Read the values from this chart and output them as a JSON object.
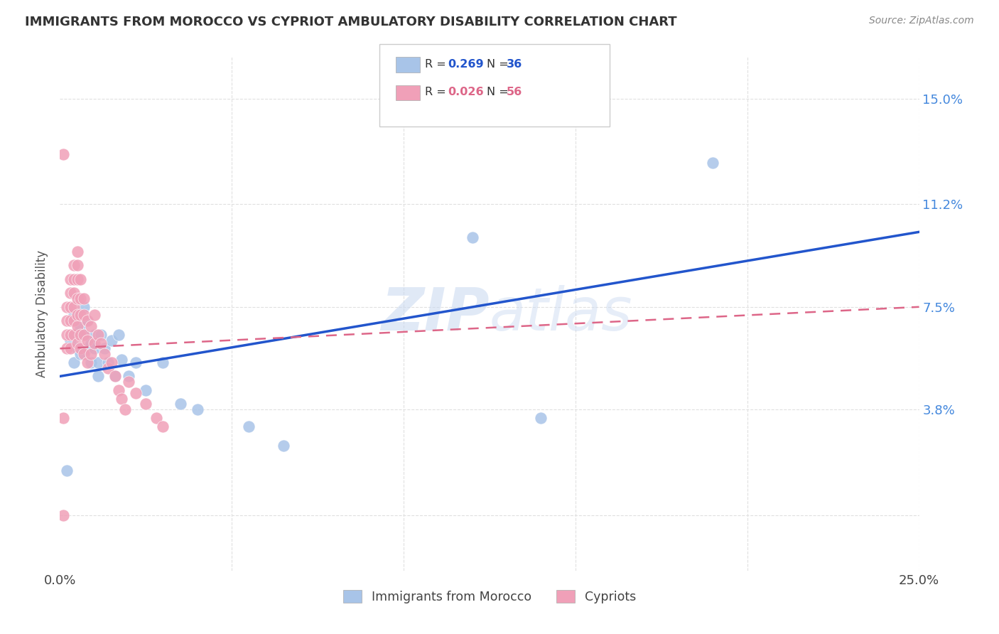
{
  "title": "IMMIGRANTS FROM MOROCCO VS CYPRIOT AMBULATORY DISABILITY CORRELATION CHART",
  "source": "Source: ZipAtlas.com",
  "ylabel": "Ambulatory Disability",
  "watermark": "ZIPAtlas",
  "x_min": 0.0,
  "x_max": 0.25,
  "y_min": -0.02,
  "y_max": 0.165,
  "color_blue": "#a8c4e8",
  "color_pink": "#f0a0b8",
  "line_color_blue": "#2255cc",
  "line_color_pink": "#dd6688",
  "legend_label1": "Immigrants from Morocco",
  "legend_label2": "Cypriots",
  "background_color": "#ffffff",
  "grid_color": "#e0e0e0",
  "blue_line_x0": 0.0,
  "blue_line_y0": 0.05,
  "blue_line_x1": 0.25,
  "blue_line_y1": 0.102,
  "pink_line_x0": 0.0,
  "pink_line_y0": 0.06,
  "pink_line_x1": 0.25,
  "pink_line_y1": 0.075,
  "morocco_x": [
    0.002,
    0.003,
    0.004,
    0.004,
    0.005,
    0.005,
    0.006,
    0.006,
    0.007,
    0.007,
    0.008,
    0.008,
    0.009,
    0.009,
    0.01,
    0.01,
    0.011,
    0.011,
    0.012,
    0.013,
    0.014,
    0.015,
    0.016,
    0.017,
    0.018,
    0.02,
    0.022,
    0.025,
    0.03,
    0.035,
    0.04,
    0.055,
    0.14,
    0.19,
    0.12,
    0.065
  ],
  "morocco_y": [
    0.016,
    0.063,
    0.072,
    0.055,
    0.065,
    0.06,
    0.068,
    0.058,
    0.075,
    0.065,
    0.07,
    0.06,
    0.062,
    0.055,
    0.065,
    0.06,
    0.055,
    0.05,
    0.065,
    0.06,
    0.055,
    0.063,
    0.05,
    0.065,
    0.056,
    0.05,
    0.055,
    0.045,
    0.055,
    0.04,
    0.038,
    0.032,
    0.035,
    0.127,
    0.1,
    0.025
  ],
  "cyprus_x": [
    0.001,
    0.001,
    0.002,
    0.002,
    0.002,
    0.002,
    0.003,
    0.003,
    0.003,
    0.003,
    0.003,
    0.003,
    0.004,
    0.004,
    0.004,
    0.004,
    0.004,
    0.004,
    0.005,
    0.005,
    0.005,
    0.005,
    0.005,
    0.005,
    0.005,
    0.006,
    0.006,
    0.006,
    0.006,
    0.006,
    0.007,
    0.007,
    0.007,
    0.007,
    0.008,
    0.008,
    0.008,
    0.009,
    0.009,
    0.01,
    0.01,
    0.011,
    0.012,
    0.013,
    0.014,
    0.015,
    0.016,
    0.017,
    0.018,
    0.019,
    0.02,
    0.022,
    0.025,
    0.028,
    0.03,
    0.001
  ],
  "cyprus_y": [
    0.0,
    0.13,
    0.075,
    0.07,
    0.065,
    0.06,
    0.085,
    0.08,
    0.075,
    0.07,
    0.065,
    0.06,
    0.09,
    0.085,
    0.08,
    0.075,
    0.07,
    0.065,
    0.095,
    0.09,
    0.085,
    0.078,
    0.072,
    0.068,
    0.062,
    0.085,
    0.078,
    0.072,
    0.065,
    0.06,
    0.078,
    0.072,
    0.065,
    0.058,
    0.07,
    0.063,
    0.055,
    0.068,
    0.058,
    0.072,
    0.062,
    0.065,
    0.062,
    0.058,
    0.053,
    0.055,
    0.05,
    0.045,
    0.042,
    0.038,
    0.048,
    0.044,
    0.04,
    0.035,
    0.032,
    0.035
  ]
}
